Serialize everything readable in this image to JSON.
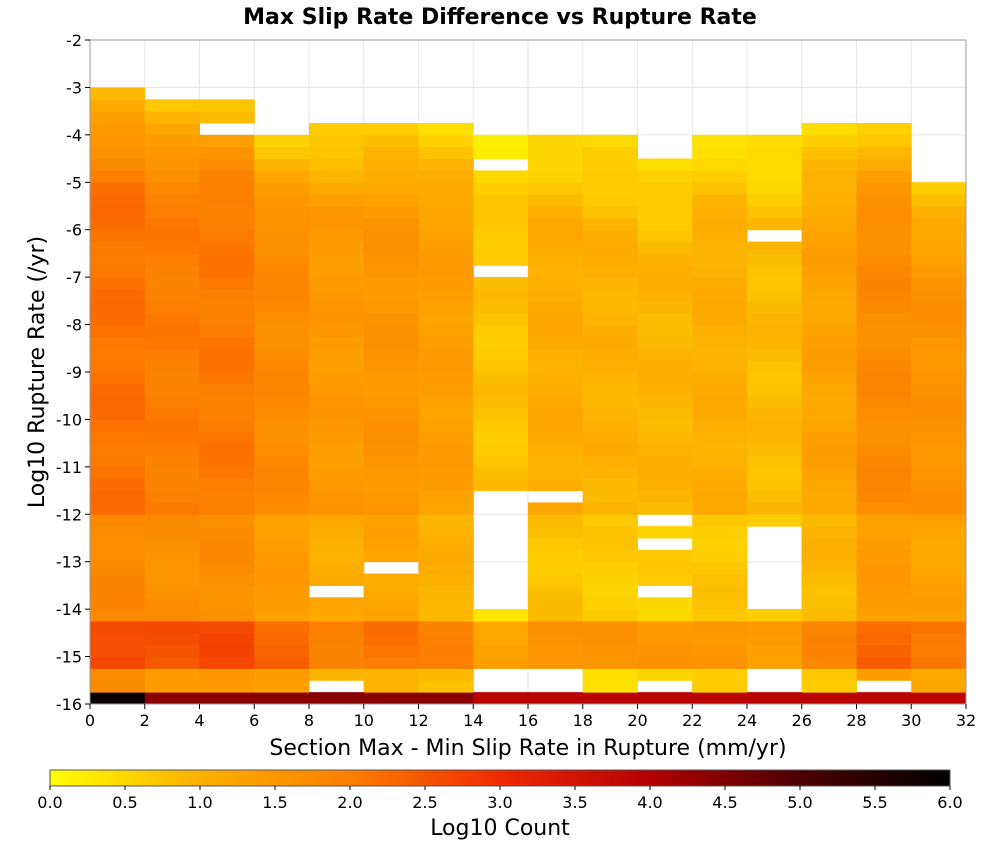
{
  "chart_data": {
    "type": "heatmap",
    "title": "Max Slip Rate Difference vs Rupture Rate",
    "xlabel": "Section Max - Min Slip Rate in Rupture (mm/yr)",
    "ylabel": "Log10 Rupture Rate (/yr)",
    "xlim": [
      0,
      32
    ],
    "ylim": [
      -16,
      -2
    ],
    "x_ticks": [
      "0",
      "2",
      "4",
      "6",
      "8",
      "10",
      "12",
      "14",
      "16",
      "18",
      "20",
      "22",
      "24",
      "26",
      "28",
      "30",
      "32"
    ],
    "y_ticks": [
      "-2",
      "-3",
      "-4",
      "-5",
      "-6",
      "-7",
      "-8",
      "-9",
      "-10",
      "-11",
      "-12",
      "-13",
      "-14",
      "-15",
      "-16"
    ],
    "x_bin_width": 2,
    "y_bin_height": 0.25,
    "y_bin_start": -16,
    "colorbar": {
      "label": "Log10 Count",
      "range": [
        0,
        6
      ],
      "ticks": [
        "0.0",
        "0.5",
        "1.0",
        "1.5",
        "2.0",
        "2.5",
        "3.0",
        "3.5",
        "4.0",
        "4.5",
        "5.0",
        "5.5",
        "6.0"
      ],
      "colors": [
        "#ffff00",
        "#fdb000",
        "#fc7f00",
        "#ef2a00",
        "#b30000",
        "#4b0000",
        "#000000"
      ]
    },
    "column_tops": [
      -3.0,
      -3.25,
      -3.25,
      -4.0,
      -3.75,
      -3.75,
      -3.75,
      -4.0,
      -4.0,
      -4.0,
      -4.5,
      -4.0,
      -4.0,
      -3.75,
      -3.75,
      -5.0
    ],
    "missing_cells": [
      [
        2,
        -4.0
      ],
      [
        7,
        -4.75
      ],
      [
        7,
        -7.0
      ],
      [
        7,
        -11.75
      ],
      [
        7,
        -12.0
      ],
      [
        7,
        -12.25
      ],
      [
        7,
        -12.5
      ],
      [
        7,
        -12.75
      ],
      [
        7,
        -13.0
      ],
      [
        7,
        -13.25
      ],
      [
        7,
        -13.5
      ],
      [
        7,
        -13.75
      ],
      [
        7,
        -14.0
      ],
      [
        7,
        -15.5
      ],
      [
        7,
        -15.75
      ],
      [
        8,
        -11.75
      ],
      [
        8,
        -15.5
      ],
      [
        8,
        -15.75
      ],
      [
        10,
        -12.25
      ],
      [
        10,
        -12.75
      ],
      [
        10,
        -13.75
      ],
      [
        12,
        -6.25
      ],
      [
        12,
        -12.5
      ],
      [
        12,
        -12.75
      ],
      [
        12,
        -13.0
      ],
      [
        12,
        -13.25
      ],
      [
        12,
        -13.5
      ],
      [
        12,
        -13.75
      ],
      [
        12,
        -14.0
      ],
      [
        12,
        -15.5
      ],
      [
        12,
        -15.75
      ],
      [
        5,
        -13.25
      ],
      [
        4,
        -13.75
      ],
      [
        4,
        -15.75
      ],
      [
        10,
        -15.75
      ],
      [
        14,
        -15.75
      ]
    ],
    "grid": true
  }
}
